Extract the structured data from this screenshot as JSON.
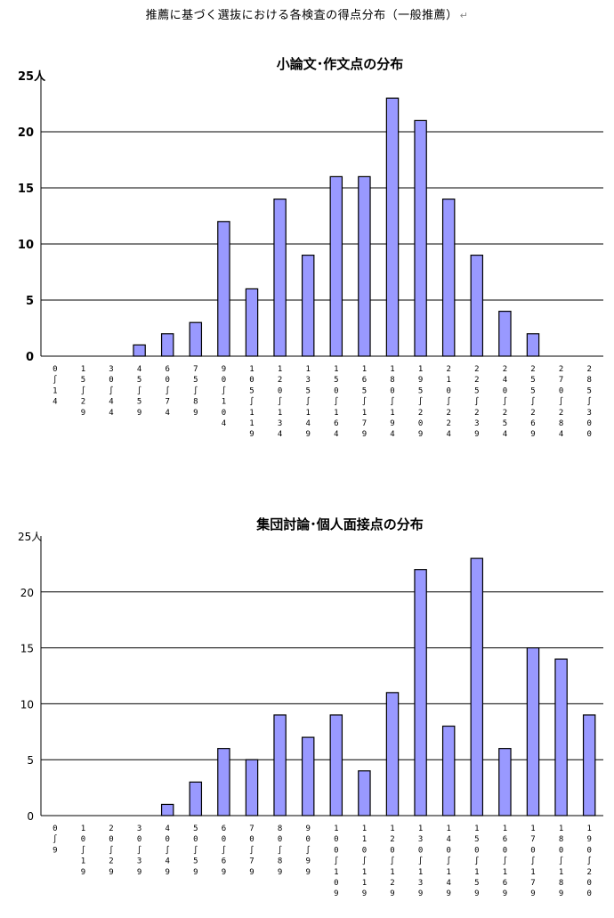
{
  "page": {
    "title": "推薦に基づく選抜における各検査の得点分布（一般推薦）",
    "return_mark": "↵"
  },
  "chart_data": [
    {
      "type": "bar",
      "title": "小論文･作文点の分布",
      "ylabel": "25人",
      "ylim": [
        0,
        25
      ],
      "yticks": [
        0,
        5,
        10,
        15,
        20
      ],
      "grid": true,
      "bar_color": "#9999ff",
      "categories": [
        "0～14",
        "15～29",
        "30～44",
        "45～59",
        "60～74",
        "75～89",
        "90～104",
        "105～119",
        "120～134",
        "135～149",
        "150～164",
        "165～179",
        "180～194",
        "195～209",
        "210～224",
        "225～239",
        "240～254",
        "255～269",
        "270～284",
        "285～300"
      ],
      "values": [
        0,
        0,
        0,
        1,
        2,
        3,
        12,
        6,
        14,
        9,
        16,
        16,
        23,
        21,
        14,
        9,
        4,
        2,
        0,
        0
      ]
    },
    {
      "type": "bar",
      "title": "集団討論･個人面接点の分布",
      "ylabel": "25人",
      "ylim": [
        0,
        25
      ],
      "yticks": [
        0,
        5,
        10,
        15,
        20
      ],
      "grid": true,
      "bar_color": "#9999ff",
      "categories": [
        "0～9",
        "10～19",
        "20～29",
        "30～39",
        "40～49",
        "50～59",
        "60～69",
        "70～79",
        "80～89",
        "90～99",
        "100～109",
        "110～119",
        "120～129",
        "130～139",
        "140～149",
        "150～159",
        "160～169",
        "170～179",
        "180～189",
        "190～200"
      ],
      "values": [
        0,
        0,
        0,
        0,
        1,
        3,
        6,
        5,
        9,
        7,
        9,
        4,
        11,
        22,
        8,
        23,
        6,
        15,
        14,
        9
      ]
    }
  ]
}
